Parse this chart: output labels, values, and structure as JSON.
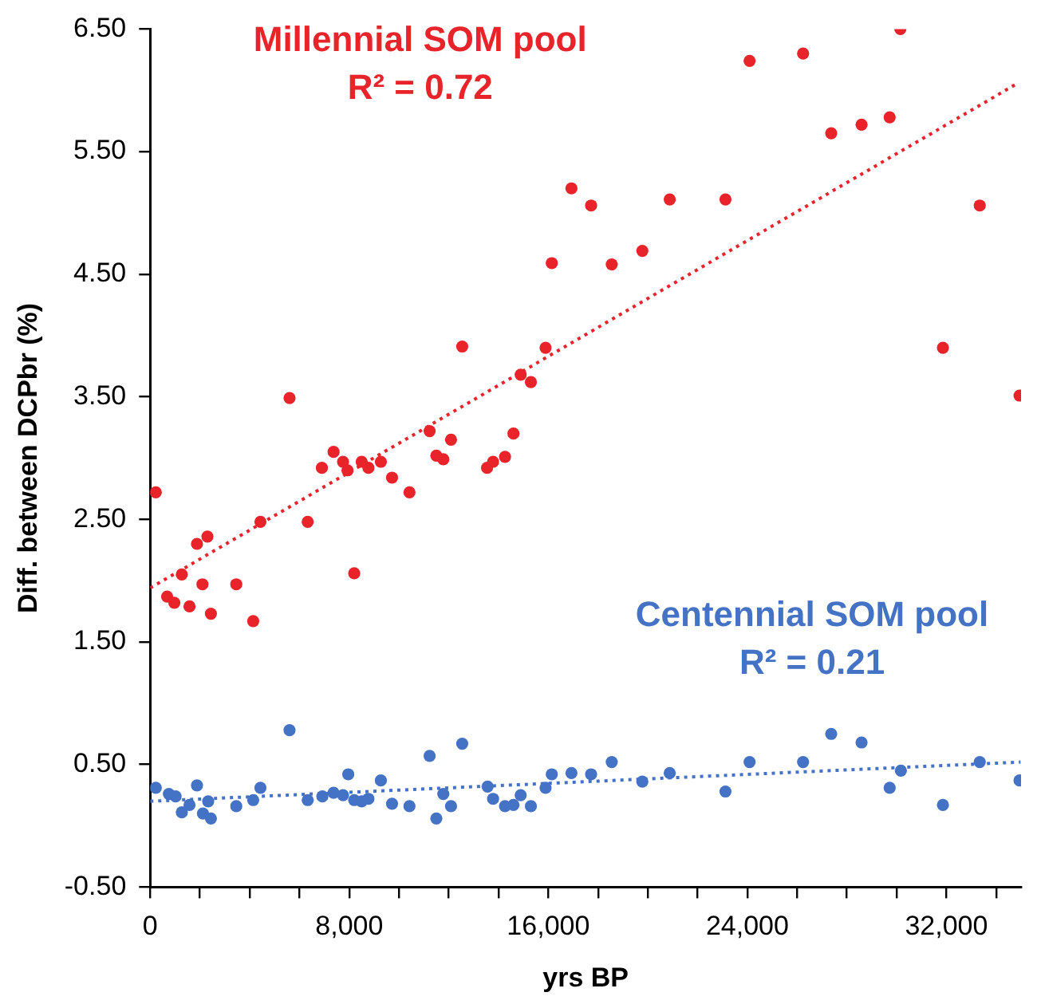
{
  "chart_data": {
    "type": "scatter",
    "xlabel": "yrs BP",
    "ylabel": "Diff. between DCPbr (%)",
    "xlim": [
      0,
      35000
    ],
    "ylim": [
      -0.5,
      6.5
    ],
    "xticks": [
      {
        "value": 0,
        "label": "0"
      },
      {
        "value": 2000,
        "label": null
      },
      {
        "value": 4000,
        "label": null
      },
      {
        "value": 6000,
        "label": null
      },
      {
        "value": 8000,
        "label": "8,000"
      },
      {
        "value": 10000,
        "label": null
      },
      {
        "value": 12000,
        "label": null
      },
      {
        "value": 14000,
        "label": null
      },
      {
        "value": 16000,
        "label": "16,000"
      },
      {
        "value": 18000,
        "label": null
      },
      {
        "value": 20000,
        "label": null
      },
      {
        "value": 22000,
        "label": null
      },
      {
        "value": 24000,
        "label": "24,000"
      },
      {
        "value": 26000,
        "label": null
      },
      {
        "value": 28000,
        "label": null
      },
      {
        "value": 30000,
        "label": null
      },
      {
        "value": 32000,
        "label": "32,000"
      },
      {
        "value": 34000,
        "label": null
      }
    ],
    "yticks": [
      {
        "value": -0.5,
        "label": "-0.50"
      },
      {
        "value": 0.5,
        "label": "0.50"
      },
      {
        "value": 1.5,
        "label": "1.50"
      },
      {
        "value": 2.5,
        "label": "2.50"
      },
      {
        "value": 3.5,
        "label": "3.50"
      },
      {
        "value": 4.5,
        "label": "4.50"
      },
      {
        "value": 5.5,
        "label": "5.50"
      },
      {
        "value": 6.5,
        "label": "6.50"
      }
    ],
    "grid": false,
    "legend": false,
    "marker": "circle",
    "series": [
      {
        "name": "Millennial SOM pool",
        "color": "#e8242a",
        "x": [
          225,
          680,
          970,
          1270,
          1580,
          1880,
          2100,
          2300,
          2440,
          3460,
          4140,
          4430,
          5600,
          6330,
          6900,
          7370,
          7750,
          7930,
          8200,
          8500,
          8770,
          9270,
          9720,
          10420,
          11230,
          11500,
          11780,
          12090,
          12540,
          13540,
          13780,
          14260,
          14600,
          14890,
          15300,
          15890,
          16140,
          16930,
          17720,
          18550,
          19780,
          20880,
          23120,
          24090,
          26240,
          27370,
          28590,
          29720,
          30150,
          31860,
          33340,
          34940
        ],
        "values": [
          2.72,
          1.87,
          1.82,
          2.05,
          1.79,
          2.3,
          1.97,
          2.36,
          1.73,
          1.97,
          1.67,
          2.48,
          3.49,
          2.48,
          2.92,
          3.05,
          2.97,
          2.9,
          2.06,
          2.97,
          2.92,
          2.97,
          2.84,
          2.72,
          3.22,
          3.02,
          2.99,
          3.15,
          3.91,
          2.92,
          2.97,
          3.01,
          3.2,
          3.68,
          3.62,
          3.9,
          4.59,
          5.2,
          5.06,
          4.58,
          4.69,
          5.11,
          5.11,
          6.24,
          6.3,
          5.65,
          5.72,
          5.78,
          6.5,
          3.9,
          5.06,
          3.51
        ]
      },
      {
        "name": "Centennial SOM pool",
        "color": "#4472c4",
        "x": [
          225,
          750,
          1020,
          1270,
          1580,
          1880,
          2120,
          2330,
          2440,
          3460,
          4140,
          4430,
          5600,
          6330,
          6920,
          7370,
          7750,
          7960,
          8200,
          8500,
          8770,
          9270,
          9720,
          10420,
          11230,
          11500,
          11780,
          12090,
          12540,
          13560,
          13780,
          14260,
          14600,
          14890,
          15300,
          15890,
          16140,
          16930,
          17720,
          18550,
          19780,
          20880,
          23120,
          24090,
          26240,
          27370,
          28590,
          29720,
          30170,
          31860,
          33340,
          34940
        ],
        "values": [
          0.31,
          0.26,
          0.24,
          0.11,
          0.17,
          0.33,
          0.1,
          0.2,
          0.06,
          0.16,
          0.21,
          0.31,
          0.78,
          0.21,
          0.24,
          0.27,
          0.25,
          0.42,
          0.21,
          0.2,
          0.22,
          0.37,
          0.18,
          0.16,
          0.57,
          0.06,
          0.26,
          0.16,
          0.67,
          0.32,
          0.22,
          0.16,
          0.17,
          0.25,
          0.16,
          0.31,
          0.42,
          0.43,
          0.42,
          0.52,
          0.36,
          0.43,
          0.28,
          0.52,
          0.52,
          0.75,
          0.68,
          0.31,
          0.45,
          0.17,
          0.52,
          0.37
        ]
      },
      {
        "type": "line",
        "marker": "none",
        "line_style": "dotted",
        "color": "#e8242a",
        "x": [
          0,
          34800
        ],
        "values": [
          1.94,
          6.05
        ]
      },
      {
        "type": "line",
        "marker": "none",
        "line_style": "dotted",
        "color": "#4472c4",
        "x": [
          0,
          34980
        ],
        "values": [
          0.2,
          0.52
        ]
      }
    ],
    "annotations": [
      "R² = 0.72",
      "R² = 0.21"
    ]
  }
}
